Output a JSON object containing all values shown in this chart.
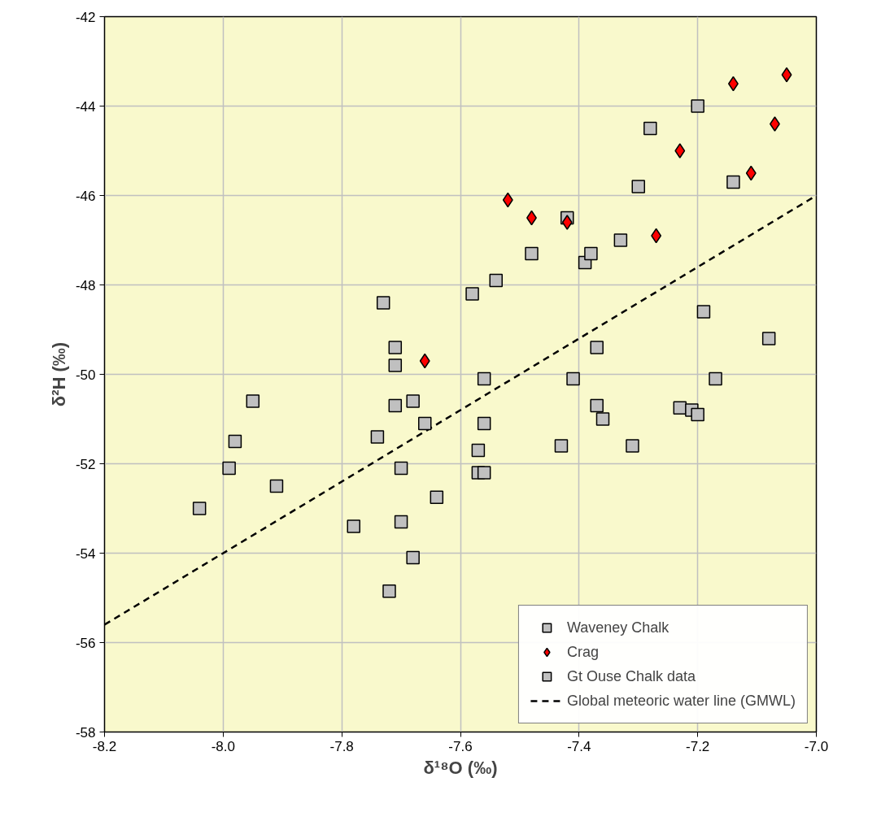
{
  "chart_data": {
    "type": "scatter",
    "xlabel": "δ¹⁸O (‰)",
    "ylabel": "δ²H (‰)",
    "xlim": [
      -8.2,
      -7.0
    ],
    "xticks": [
      {
        "value": -8.2,
        "label": "-8.2"
      },
      {
        "value": -8.0,
        "label": "-8.0"
      },
      {
        "value": -7.8,
        "label": "-7.8"
      },
      {
        "value": -7.6,
        "label": "-7.6"
      },
      {
        "value": -7.4,
        "label": "-7.4"
      },
      {
        "value": -7.2,
        "label": "-7.2"
      },
      {
        "value": -7.0,
        "label": "-7.0"
      }
    ],
    "ylim": [
      -58,
      -42
    ],
    "yticks": [
      -58,
      -56,
      -54,
      -52,
      -50,
      -48,
      -46,
      -44,
      -42
    ],
    "grid": true,
    "legend": "bottom right",
    "series": [
      {
        "name": "Waveney Chalk",
        "marker": "square",
        "color": "#c0c0c0"
      },
      {
        "name": "Crag",
        "marker": "diamond",
        "color": "#ff0000",
        "x": [
          -7.66,
          -7.52,
          -7.48,
          -7.42,
          -7.27,
          -7.23,
          -7.14,
          -7.11,
          -7.07,
          -7.05
        ],
        "values": [
          -49.7,
          -46.1,
          -46.5,
          -46.6,
          -46.9,
          -45.0,
          -43.5,
          -45.5,
          -44.4,
          -43.3
        ]
      },
      {
        "name": "Gt Ouse Chalk data",
        "marker": "square",
        "color": "#c0c0c0",
        "x": [
          -8.04,
          -7.99,
          -7.98,
          -7.95,
          -7.91,
          -7.78,
          -7.74,
          -7.73,
          -7.72,
          -7.71,
          -7.71,
          -7.71,
          -7.7,
          -7.7,
          -7.68,
          -7.68,
          -7.66,
          -7.64,
          -7.58,
          -7.57,
          -7.57,
          -7.56,
          -7.56,
          -7.56,
          -7.54,
          -7.48,
          -7.43,
          -7.42,
          -7.41,
          -7.39,
          -7.38,
          -7.37,
          -7.37,
          -7.36,
          -7.33,
          -7.31,
          -7.3,
          -7.28,
          -7.23,
          -7.21,
          -7.2,
          -7.2,
          -7.19,
          -7.17,
          -7.14,
          -7.08
        ],
        "values": [
          -53.0,
          -52.1,
          -51.5,
          -50.6,
          -52.5,
          -53.4,
          -51.4,
          -48.4,
          -54.85,
          -49.4,
          -49.8,
          -50.7,
          -52.1,
          -53.3,
          -50.6,
          -54.1,
          -51.1,
          -52.75,
          -48.2,
          -51.7,
          -52.2,
          -50.1,
          -51.1,
          -52.2,
          -47.9,
          -47.3,
          -51.6,
          -46.5,
          -50.1,
          -47.5,
          -47.3,
          -49.4,
          -50.7,
          -51.0,
          -47.0,
          -51.6,
          -45.8,
          -44.5,
          -50.75,
          -50.8,
          -50.9,
          -44.0,
          -48.6,
          -50.1,
          -45.7,
          -49.2
        ]
      },
      {
        "name": "Global meteoric water line (GMWL)",
        "type": "line",
        "line_style": "dashed",
        "marker": "none",
        "color": "#000000",
        "x": [
          -8.2,
          -7.0
        ],
        "values": [
          -55.6,
          -46.0
        ]
      }
    ]
  }
}
